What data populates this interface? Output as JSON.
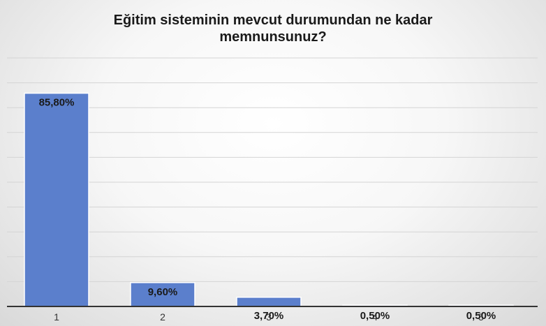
{
  "chart_data": {
    "type": "bar",
    "title_lines": [
      "Eğitim sisteminin mevcut durumundan ne kadar",
      "memnunsunuz?"
    ],
    "categories": [
      "1",
      "2",
      "3",
      "4",
      "5"
    ],
    "values": [
      85.8,
      9.6,
      3.7,
      0.5,
      0.5
    ],
    "data_labels": [
      "85,80%",
      "9,60%",
      "3,70%",
      "0,50%",
      "0,50%"
    ],
    "ylim": [
      0,
      100
    ],
    "grid": true,
    "legend": "none",
    "bar_color": "#5b7fcc",
    "bar_edge_color": "#ffffff"
  }
}
